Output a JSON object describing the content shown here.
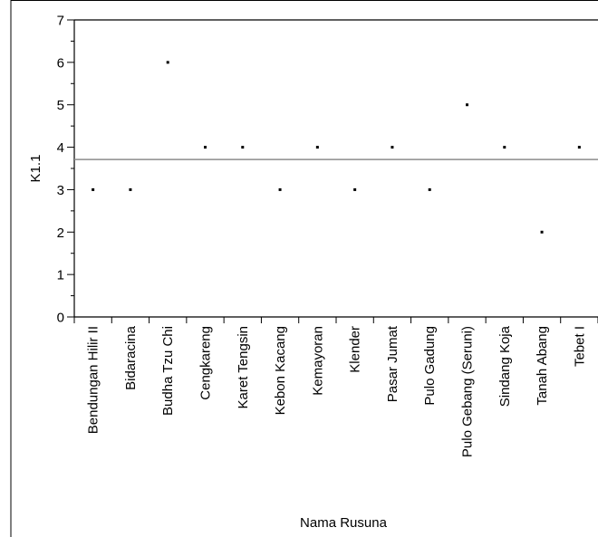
{
  "chart_data": {
    "type": "scatter",
    "title": "",
    "xlabel": "Nama Rusuna",
    "ylabel": "K1.1",
    "ylim": [
      0,
      7
    ],
    "yticks": [
      0,
      1,
      2,
      3,
      4,
      5,
      6,
      7
    ],
    "grid": false,
    "reference_line": 3.71,
    "colors": {
      "points": "#000000",
      "reference_line": "#8c8c8c"
    },
    "categories": [
      "Bendungan Hilir II",
      "Bidaracina",
      "Budha Tzu Chi",
      "Cengkareng",
      "Karet Tengsin",
      "Kebon Kacang",
      "Kemayoran",
      "Klender",
      "Pasar Jumat",
      "Pulo Gadung",
      "Pulo Gebang (Seruni)",
      "Sindang Koja",
      "Tanah Abang",
      "Tebet I"
    ],
    "values": [
      3,
      3,
      6,
      4,
      4,
      3,
      4,
      3,
      4,
      3,
      5,
      4,
      2,
      4
    ]
  }
}
